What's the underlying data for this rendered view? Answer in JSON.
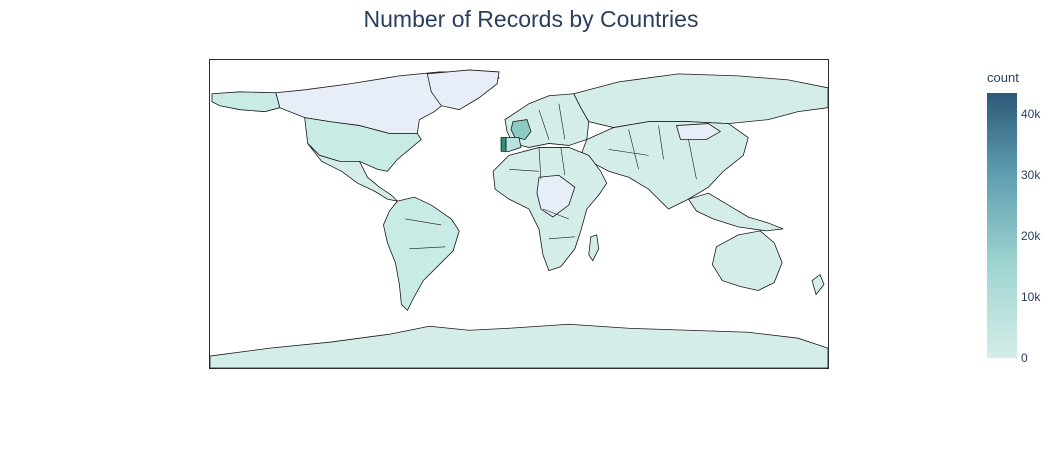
{
  "title": "Number of Records by Countries",
  "colorbar": {
    "title": "count",
    "ticks": [
      "0",
      "10k",
      "20k",
      "30k",
      "40k"
    ],
    "tick_values": [
      0,
      10000,
      20000,
      30000,
      40000
    ],
    "max": 43500,
    "colors": {
      "low": "#d4ede9",
      "mid": "#9fd5d1",
      "high": "#5d9db0",
      "top": "#2d5877"
    }
  },
  "map": {
    "projection": "equirectangular",
    "no_data_color": "#e8eef7",
    "border_color": "#1a1a1a",
    "highlights": [
      {
        "region": "Portugal",
        "color": "#2f8f7f"
      },
      {
        "region": "France",
        "color": "#8ccbc4"
      },
      {
        "region": "United States",
        "color": "#c8ebe6"
      }
    ]
  }
}
